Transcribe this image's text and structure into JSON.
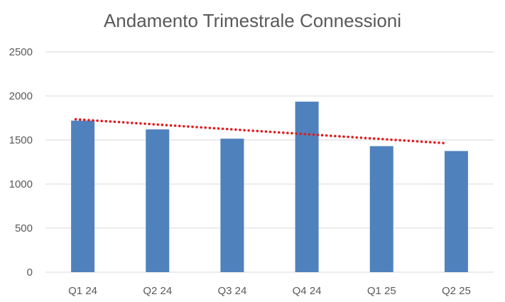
{
  "chart_data": {
    "type": "bar",
    "title": "Andamento Trimestrale Connessioni",
    "categories": [
      "Q1 24",
      "Q2 24",
      "Q3 24",
      "Q4 24",
      "Q1 25",
      "Q2 25"
    ],
    "values": [
      1720,
      1620,
      1515,
      1935,
      1430,
      1375
    ],
    "ylim": [
      0,
      2500
    ],
    "yticks": [
      0,
      500,
      1000,
      1500,
      2000,
      2500
    ],
    "grid": true,
    "legend": "none",
    "trendline": {
      "type": "linear",
      "style": "dotted",
      "start": 1735,
      "end": 1465
    },
    "colors": {
      "bar": "#4f81bd",
      "trendline": "#e31a1c",
      "grid": "#d9d9d9",
      "text": "#595959"
    }
  }
}
